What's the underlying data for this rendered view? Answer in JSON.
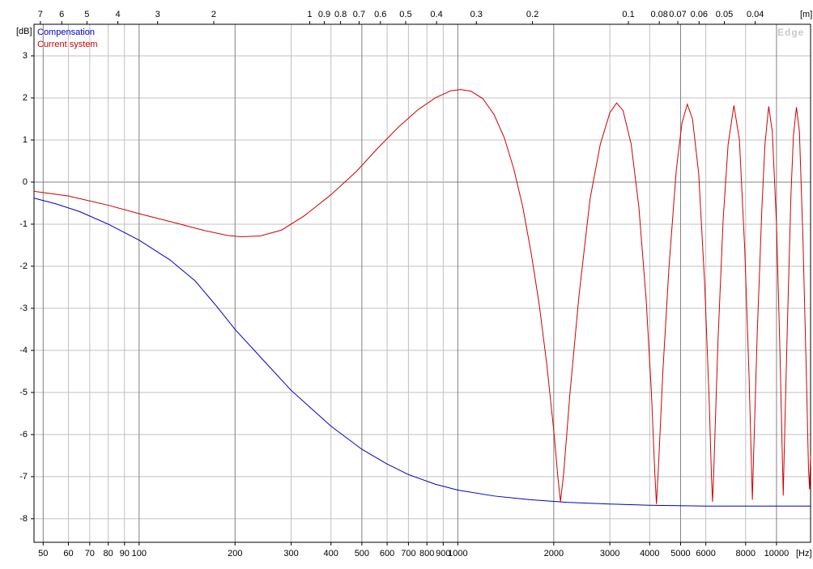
{
  "chart_data": {
    "type": "line",
    "y_unit": "[dB]",
    "x_unit": "[Hz]",
    "x2_unit": "[m]",
    "watermark": "Edge",
    "xscale": "log",
    "grid": true,
    "legend": "upper left",
    "xlim": [
      46.8,
      12790
    ],
    "ylim": [
      -8.56,
      3.75
    ],
    "yticks": [
      -8,
      -7,
      -6,
      -5,
      -4,
      -3,
      -2,
      -1,
      0,
      1,
      2,
      3
    ],
    "xticks": [
      50,
      60,
      70,
      80,
      90,
      100,
      200,
      300,
      400,
      500,
      600,
      700,
      800,
      900,
      1000,
      2000,
      3000,
      4000,
      5000,
      6000,
      8000,
      10000
    ],
    "x2ticks": [
      {
        "value": 49,
        "label": "7"
      },
      {
        "value": 57.17,
        "label": "6"
      },
      {
        "value": 68.6,
        "label": "5"
      },
      {
        "value": 85.75,
        "label": "4"
      },
      {
        "value": 114.3,
        "label": "3"
      },
      {
        "value": 171.5,
        "label": "2"
      },
      {
        "value": 343,
        "label": "1"
      },
      {
        "value": 381.1,
        "label": "0.9"
      },
      {
        "value": 428.75,
        "label": "0.8"
      },
      {
        "value": 490,
        "label": "0.7"
      },
      {
        "value": 571.7,
        "label": "0.6"
      },
      {
        "value": 686,
        "label": "0.5"
      },
      {
        "value": 857.5,
        "label": "0.4"
      },
      {
        "value": 1143.3,
        "label": "0.3"
      },
      {
        "value": 1715,
        "label": "0.2"
      },
      {
        "value": 3430,
        "label": "0.1"
      },
      {
        "value": 4287.5,
        "label": "0.08"
      },
      {
        "value": 4900,
        "label": "0.07"
      },
      {
        "value": 5716.7,
        "label": "0.06"
      },
      {
        "value": 6860,
        "label": "0.05"
      },
      {
        "value": 8575,
        "label": "0.04"
      }
    ],
    "series": [
      {
        "name": "Compensation",
        "color": "#0000c0",
        "x": [
          46.8,
          55,
          65,
          80,
          100,
          125,
          150,
          175,
          200,
          250,
          300,
          400,
          500,
          600,
          700,
          850,
          1000,
          1300,
          1700,
          2200,
          3000,
          4000,
          6000,
          12790
        ],
        "values": [
          -0.38,
          -0.52,
          -0.7,
          -1.0,
          -1.38,
          -1.85,
          -2.35,
          -2.95,
          -3.5,
          -4.3,
          -4.95,
          -5.8,
          -6.35,
          -6.7,
          -6.95,
          -7.18,
          -7.32,
          -7.46,
          -7.55,
          -7.61,
          -7.65,
          -7.68,
          -7.7,
          -7.7
        ]
      },
      {
        "name": "Current system",
        "color": "#d00000",
        "x": [
          46.8,
          60,
          80,
          100,
          130,
          160,
          190,
          210,
          240,
          280,
          330,
          400,
          480,
          560,
          650,
          750,
          850,
          950,
          1020,
          1100,
          1200,
          1300,
          1400,
          1500,
          1600,
          1700,
          1800,
          1900,
          2000,
          2060,
          2100,
          2150,
          2250,
          2400,
          2600,
          2800,
          3000,
          3150,
          3300,
          3500,
          3700,
          3900,
          4050,
          4150,
          4200,
          4260,
          4400,
          4600,
          4850,
          5050,
          5250,
          5450,
          5700,
          5950,
          6150,
          6250,
          6300,
          6360,
          6550,
          6800,
          7050,
          7350,
          7650,
          7950,
          8200,
          8350,
          8400,
          8460,
          8700,
          9000,
          9200,
          9450,
          9700,
          10000,
          10250,
          10450,
          10500,
          10560,
          10800,
          11100,
          11300,
          11550,
          11800,
          12100,
          12400,
          12600,
          12700,
          12790
        ],
        "values": [
          -0.22,
          -0.33,
          -0.55,
          -0.75,
          -0.97,
          -1.15,
          -1.27,
          -1.3,
          -1.28,
          -1.14,
          -0.8,
          -0.3,
          0.25,
          0.8,
          1.3,
          1.72,
          2.0,
          2.17,
          2.2,
          2.16,
          1.98,
          1.6,
          1.05,
          0.3,
          -0.6,
          -1.7,
          -2.9,
          -4.3,
          -5.9,
          -7.0,
          -7.6,
          -6.9,
          -5.0,
          -2.7,
          -0.4,
          0.9,
          1.65,
          1.88,
          1.7,
          0.9,
          -0.6,
          -2.8,
          -5.0,
          -6.9,
          -7.65,
          -6.8,
          -4.5,
          -2.0,
          0.3,
          1.4,
          1.85,
          1.5,
          0.2,
          -2.4,
          -5.2,
          -7.0,
          -7.6,
          -6.8,
          -3.8,
          -0.9,
          0.9,
          1.82,
          1.0,
          -1.6,
          -4.6,
          -6.8,
          -7.55,
          -6.7,
          -3.6,
          -0.6,
          0.9,
          1.8,
          1.2,
          -1.0,
          -4.0,
          -6.8,
          -7.45,
          -6.6,
          -3.6,
          -0.3,
          1.1,
          1.78,
          1.2,
          -1.3,
          -4.5,
          -6.8,
          -7.3,
          -6.5
        ]
      }
    ]
  }
}
